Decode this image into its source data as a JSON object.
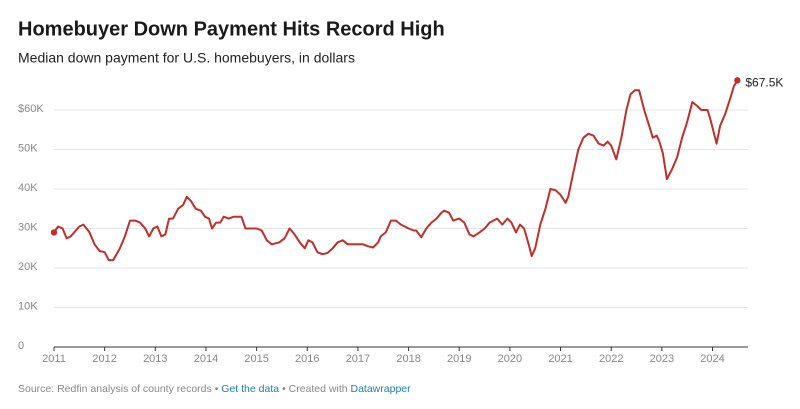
{
  "chart_data": {
    "type": "line",
    "title": "Homebuyer Down Payment Hits Record High",
    "subtitle": "Median down payment for U.S. homebuyers, in dollars",
    "source": "Source: Redfin analysis of county records",
    "separator": "•",
    "data_link": "Get the data",
    "credit": "Created with",
    "credit_link": "Datawrapper",
    "xlim": [
      2011,
      2024.7
    ],
    "xticks": [
      2011,
      2012,
      2013,
      2014,
      2015,
      2016,
      2017,
      2018,
      2019,
      2020,
      2021,
      2022,
      2023,
      2024
    ],
    "ylim": [
      0,
      70000
    ],
    "yticks": [
      0,
      {
        "value": 10000,
        "label": "10K"
      },
      {
        "value": 20000,
        "label": "20K"
      },
      {
        "value": 30000,
        "label": "30K"
      },
      {
        "value": 40000,
        "label": "40K"
      },
      {
        "value": 50000,
        "label": "50K"
      },
      {
        "value": 60000,
        "label": "$60K"
      }
    ],
    "grid": true,
    "x": [
      2011.0,
      2011.08,
      2011.17,
      2011.25,
      2011.33,
      2011.5,
      2011.58,
      2011.7,
      2011.8,
      2011.9,
      2012.0,
      2012.08,
      2012.17,
      2012.3,
      2012.4,
      2012.5,
      2012.6,
      2012.7,
      2012.8,
      2012.88,
      2012.96,
      2013.04,
      2013.12,
      2013.2,
      2013.27,
      2013.35,
      2013.45,
      2013.55,
      2013.62,
      2013.7,
      2013.8,
      2013.9,
      2013.98,
      2014.06,
      2014.12,
      2014.2,
      2014.28,
      2014.35,
      2014.45,
      2014.55,
      2014.7,
      2014.78,
      2015.0,
      2015.1,
      2015.2,
      2015.3,
      2015.45,
      2015.55,
      2015.65,
      2015.75,
      2015.85,
      2015.95,
      2016.02,
      2016.1,
      2016.2,
      2016.3,
      2016.4,
      2016.5,
      2016.6,
      2016.7,
      2016.8,
      2017.0,
      2017.1,
      2017.2,
      2017.3,
      2017.4,
      2017.45,
      2017.55,
      2017.65,
      2017.75,
      2017.85,
      2018.0,
      2018.1,
      2018.15,
      2018.25,
      2018.35,
      2018.45,
      2018.55,
      2018.65,
      2018.7,
      2018.8,
      2018.88,
      2019.0,
      2019.1,
      2019.2,
      2019.28,
      2019.4,
      2019.5,
      2019.6,
      2019.75,
      2019.85,
      2019.95,
      2020.03,
      2020.12,
      2020.2,
      2020.28,
      2020.37,
      2020.43,
      2020.5,
      2020.6,
      2020.7,
      2020.8,
      2020.9,
      2021.0,
      2021.1,
      2021.15,
      2021.25,
      2021.35,
      2021.45,
      2021.55,
      2021.65,
      2021.75,
      2021.85,
      2021.93,
      2022.0,
      2022.1,
      2022.2,
      2022.3,
      2022.38,
      2022.47,
      2022.55,
      2022.65,
      2022.75,
      2022.82,
      2022.9,
      2022.95,
      2023.02,
      2023.1,
      2023.2,
      2023.3,
      2023.4,
      2023.5,
      2023.6,
      2023.7,
      2023.78,
      2023.9,
      2023.95,
      2024.08,
      2024.15,
      2024.25,
      2024.35,
      2024.42,
      2024.49
    ],
    "series": [
      {
        "name": "Median down payment",
        "color": "#c0302b",
        "values": [
          29000,
          30500,
          30000,
          27500,
          28000,
          30500,
          31000,
          29000,
          26000,
          24300,
          24000,
          22000,
          22000,
          25000,
          28000,
          32000,
          32000,
          31500,
          30000,
          28000,
          30000,
          30500,
          28000,
          28500,
          32500,
          32500,
          35000,
          36000,
          38000,
          37000,
          35000,
          34500,
          33000,
          32500,
          30000,
          31500,
          31500,
          33000,
          32500,
          33000,
          33000,
          30000,
          30000,
          29500,
          27000,
          26000,
          26500,
          27500,
          30000,
          28500,
          26500,
          25000,
          27000,
          26500,
          24000,
          23500,
          23800,
          25000,
          26500,
          27000,
          26000,
          26000,
          26000,
          25500,
          25200,
          26500,
          28000,
          29000,
          32000,
          32000,
          31000,
          30000,
          29500,
          29500,
          27800,
          30000,
          31500,
          32500,
          34000,
          34500,
          34000,
          32000,
          32500,
          31500,
          28500,
          28000,
          29000,
          30000,
          31500,
          32500,
          31000,
          32500,
          31500,
          29000,
          31000,
          30000,
          26000,
          23000,
          25000,
          31000,
          35000,
          40000,
          39700,
          38500,
          36500,
          38000,
          44000,
          50000,
          53000,
          54000,
          53500,
          51500,
          51000,
          52000,
          51000,
          47500,
          53000,
          60000,
          64000,
          65000,
          65000,
          60000,
          56000,
          53000,
          53500,
          52000,
          49000,
          42500,
          45000,
          48000,
          53000,
          57000,
          62000,
          61000,
          60000,
          60000,
          58000,
          51500,
          56000,
          59000,
          63000,
          66000,
          67500
        ],
        "value_labels": [
          null,
          null,
          null,
          null,
          null,
          null,
          null,
          null,
          null,
          null,
          null,
          null,
          null,
          null,
          null,
          null,
          null,
          null,
          null,
          null,
          null,
          null,
          null,
          null,
          null,
          null,
          null,
          null,
          null,
          null,
          null,
          null,
          null,
          null,
          null,
          null,
          null,
          null,
          null,
          null,
          null,
          null,
          null,
          null,
          null,
          null,
          null,
          null,
          null,
          null,
          null,
          null,
          null,
          null,
          null,
          null,
          null,
          null,
          null,
          null,
          null,
          null,
          null,
          null,
          null,
          null,
          null,
          null,
          null,
          null,
          null,
          null,
          null,
          null,
          null,
          null,
          null,
          null,
          null,
          null,
          null,
          null,
          null,
          null,
          null,
          null,
          null,
          null,
          null,
          null,
          null,
          null,
          null,
          null,
          null,
          null,
          null,
          null,
          null,
          null,
          null,
          null,
          null,
          null,
          null,
          null,
          null,
          null,
          null,
          null,
          null,
          null,
          null,
          null,
          null,
          null,
          null,
          null,
          null,
          null,
          null,
          null,
          null,
          null,
          null,
          null,
          null,
          null,
          null,
          null,
          null,
          null,
          null,
          null,
          null,
          null,
          null,
          null,
          null,
          null,
          null,
          null,
          "$67.5K"
        ]
      }
    ]
  }
}
